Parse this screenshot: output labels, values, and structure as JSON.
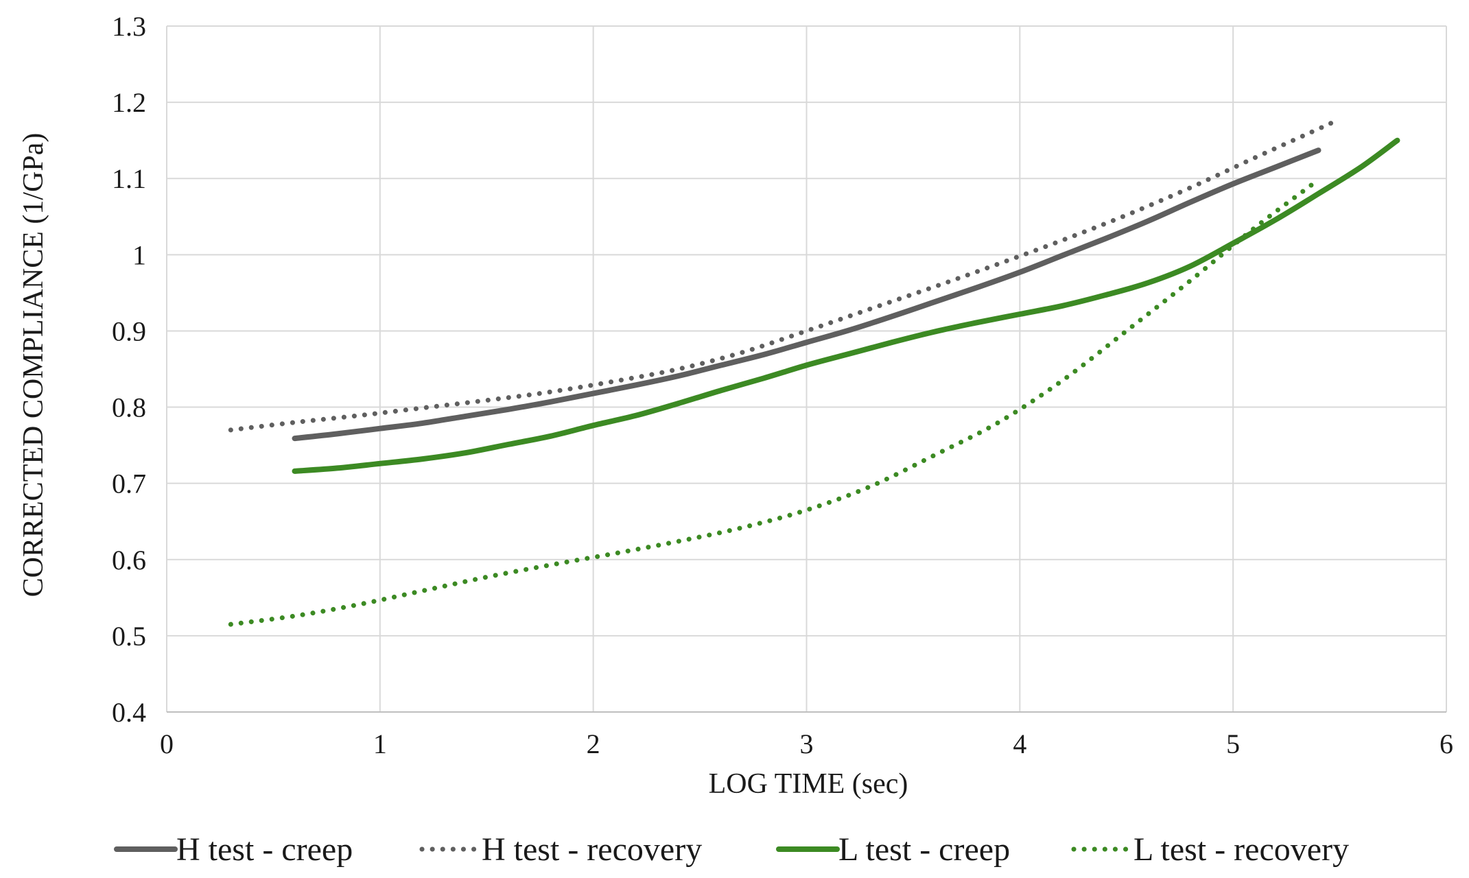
{
  "chart_data": {
    "type": "line",
    "title": "",
    "xlabel": "LOG TIME (sec)",
    "ylabel": "CORRECTED COMPLIANCE (1/GPa)",
    "xlim": [
      0,
      6
    ],
    "ylim": [
      0.4,
      1.3
    ],
    "xticks": [
      0,
      1,
      2,
      3,
      4,
      5,
      6
    ],
    "yticks": [
      0.4,
      0.5,
      0.6,
      0.7,
      0.8,
      0.9,
      1.0,
      1.1,
      1.2,
      1.3
    ],
    "xtick_labels": [
      "0",
      "1",
      "2",
      "3",
      "4",
      "5",
      "6"
    ],
    "ytick_labels": [
      "0.4",
      "0.5",
      "0.6",
      "0.7",
      "0.8",
      "0.9",
      "1",
      "1.1",
      "1.2",
      "1.3"
    ],
    "grid": true,
    "legend_position": "bottom",
    "series": [
      {
        "name": "H test - creep",
        "color": "#5f5f5f",
        "style": "solid",
        "x": [
          0.6,
          0.8,
          1.0,
          1.2,
          1.4,
          1.6,
          1.8,
          2.0,
          2.2,
          2.4,
          2.6,
          2.8,
          3.0,
          3.2,
          3.4,
          3.6,
          3.8,
          4.0,
          4.2,
          4.4,
          4.6,
          4.8,
          5.0,
          5.2,
          5.4
        ],
        "y": [
          0.759,
          0.765,
          0.772,
          0.779,
          0.788,
          0.797,
          0.807,
          0.818,
          0.829,
          0.841,
          0.855,
          0.869,
          0.885,
          0.901,
          0.919,
          0.938,
          0.957,
          0.977,
          0.999,
          1.021,
          1.044,
          1.069,
          1.093,
          1.115,
          1.137
        ]
      },
      {
        "name": "H test - recovery",
        "color": "#5f5f5f",
        "style": "dotted",
        "x": [
          0.3,
          0.6,
          0.9,
          1.2,
          1.5,
          1.8,
          2.1,
          2.4,
          2.7,
          3.0,
          3.3,
          3.6,
          3.9,
          4.2,
          4.5,
          4.8,
          5.1,
          5.4,
          5.5
        ],
        "y": [
          0.77,
          0.78,
          0.789,
          0.799,
          0.809,
          0.82,
          0.834,
          0.85,
          0.872,
          0.9,
          0.929,
          0.958,
          0.988,
          1.019,
          1.052,
          1.088,
          1.127,
          1.165,
          1.178
        ]
      },
      {
        "name": "L test - creep",
        "color": "#3c8a23",
        "style": "solid",
        "x": [
          0.6,
          0.8,
          1.0,
          1.2,
          1.4,
          1.6,
          1.8,
          2.0,
          2.2,
          2.4,
          2.6,
          2.8,
          3.0,
          3.2,
          3.4,
          3.6,
          3.8,
          4.0,
          4.2,
          4.4,
          4.6,
          4.8,
          5.0,
          5.2,
          5.4,
          5.6,
          5.77
        ],
        "y": [
          0.716,
          0.72,
          0.726,
          0.732,
          0.74,
          0.751,
          0.762,
          0.776,
          0.789,
          0.805,
          0.822,
          0.838,
          0.855,
          0.87,
          0.885,
          0.899,
          0.911,
          0.922,
          0.933,
          0.947,
          0.963,
          0.985,
          1.015,
          1.046,
          1.08,
          1.115,
          1.15
        ]
      },
      {
        "name": "L test - recovery",
        "color": "#3c8a23",
        "style": "dotted",
        "x": [
          0.3,
          0.6,
          0.9,
          1.2,
          1.5,
          1.8,
          2.1,
          2.4,
          2.7,
          3.0,
          3.3,
          3.6,
          3.9,
          4.2,
          4.5,
          4.8,
          5.1,
          5.37
        ],
        "y": [
          0.515,
          0.526,
          0.541,
          0.559,
          0.577,
          0.593,
          0.608,
          0.624,
          0.642,
          0.665,
          0.696,
          0.737,
          0.78,
          0.835,
          0.9,
          0.966,
          1.035,
          1.092
        ]
      }
    ]
  }
}
